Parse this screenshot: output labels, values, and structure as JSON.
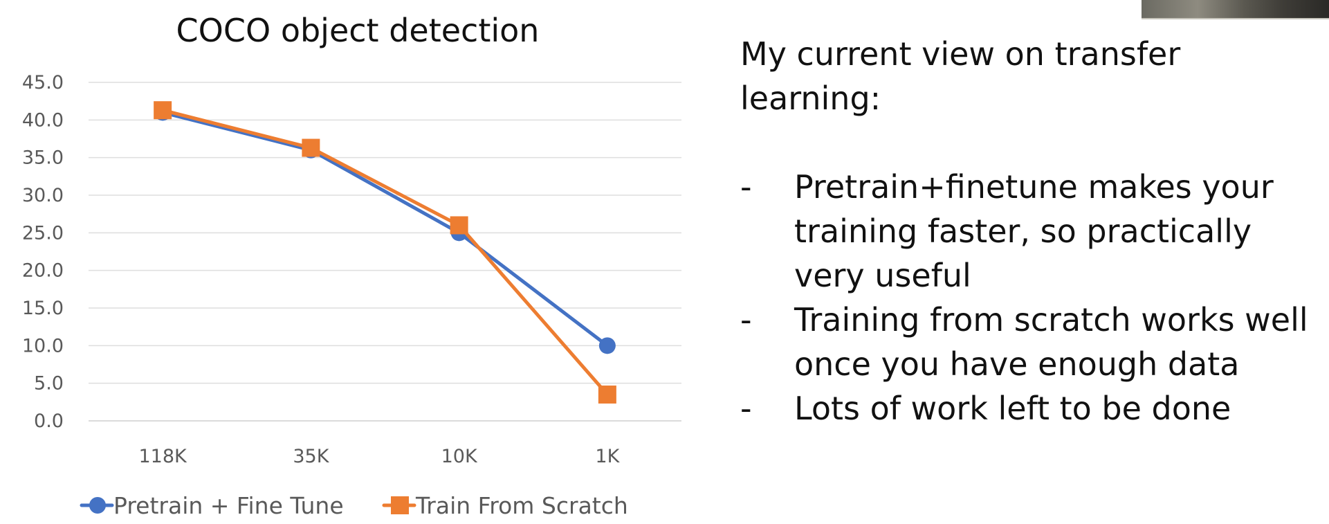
{
  "chart_data": {
    "type": "line",
    "title": "COCO object detection",
    "categories": [
      "118K",
      "35K",
      "10K",
      "1K"
    ],
    "y_ticks": [
      "45.0",
      "40.0",
      "35.0",
      "30.0",
      "25.0",
      "20.0",
      "15.0",
      "10.0",
      "5.0",
      "0.0"
    ],
    "ylim": [
      0,
      45
    ],
    "grid": true,
    "legend_position": "bottom",
    "series": [
      {
        "name": "Pretrain + Fine Tune",
        "values": [
          41.0,
          36.0,
          25.0,
          10.0
        ],
        "color": "#4472C4",
        "marker": "circle"
      },
      {
        "name": "Train From Scratch",
        "values": [
          41.3,
          36.3,
          26.0,
          3.5
        ],
        "color": "#ED7D31",
        "marker": "square"
      }
    ]
  },
  "slide": {
    "heading": "My current view on transfer learning:",
    "bullet_marker": "-",
    "bullets": [
      "Pretrain+finetune makes your training faster, so practically very useful",
      "Training from scratch works well once you have enough data",
      "Lots of work left to be done"
    ]
  }
}
